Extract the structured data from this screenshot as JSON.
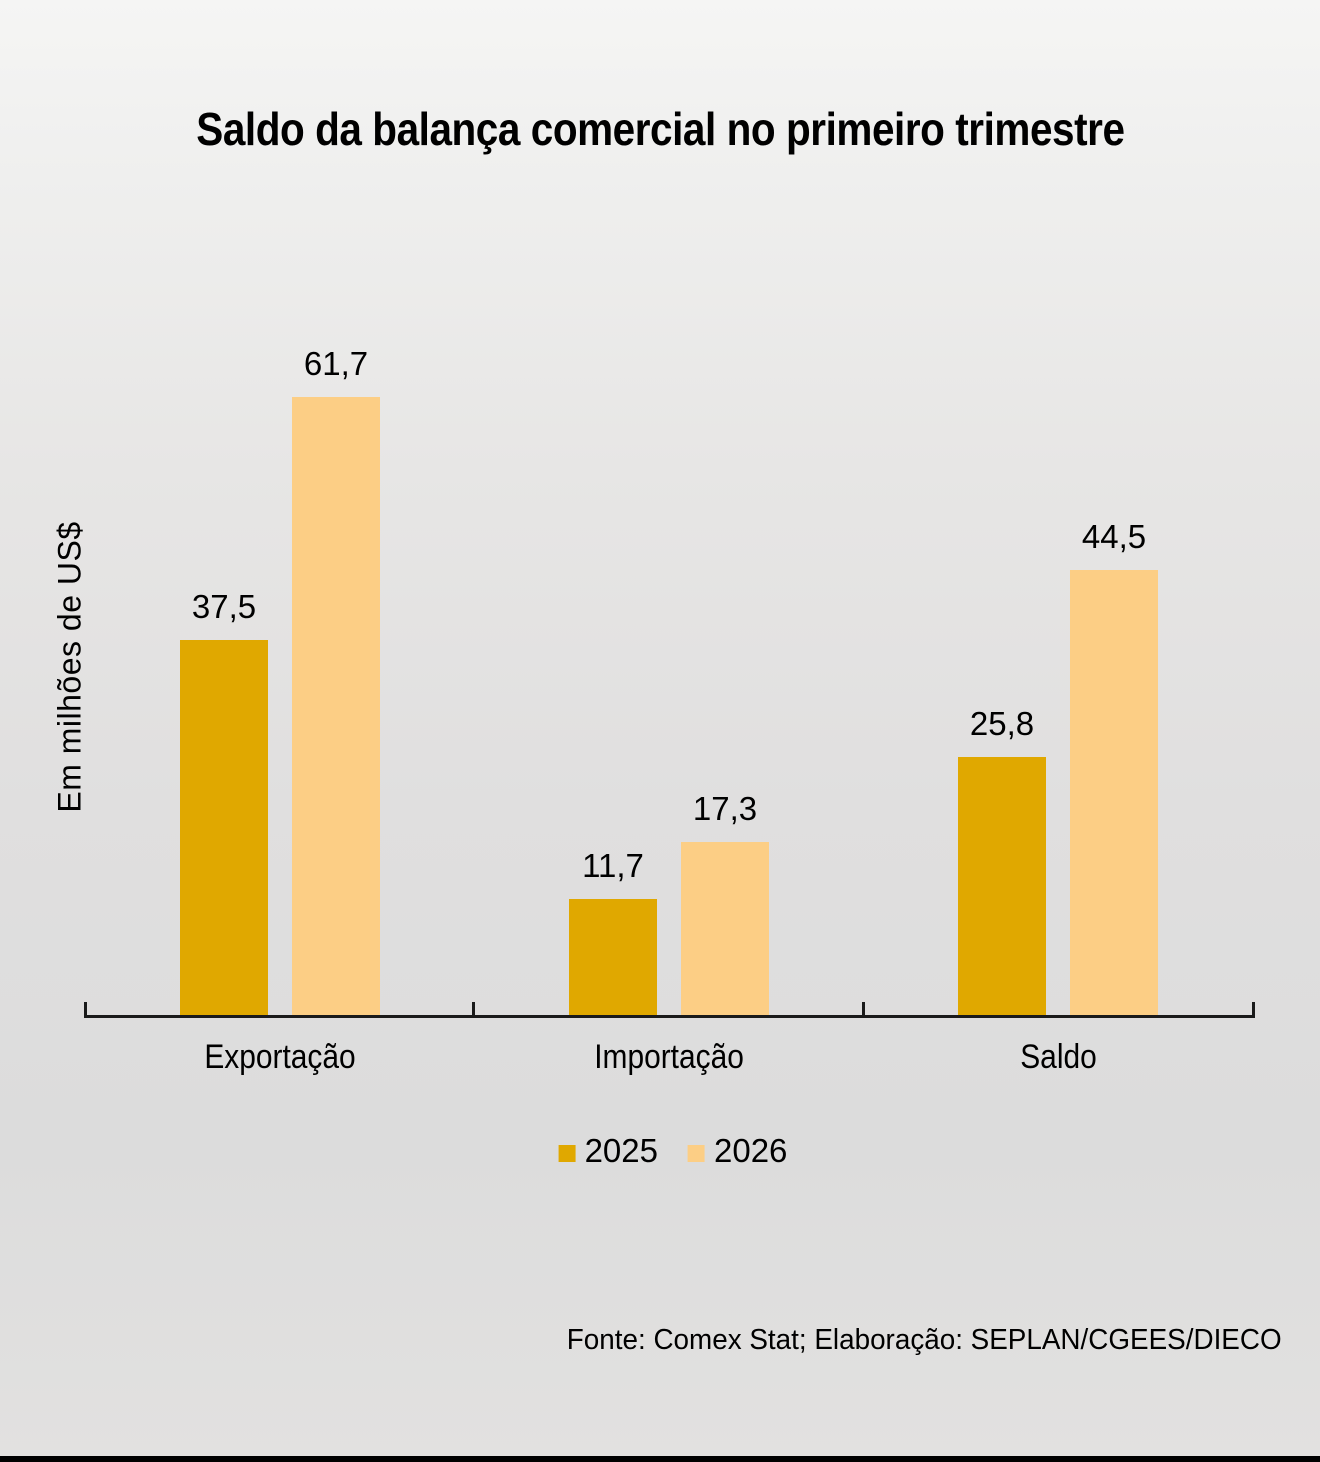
{
  "title": "Saldo da balança comercial no primeiro trimestre",
  "y_axis_label": "Em milhões de US$",
  "footer": "Fonte: Comex Stat; Elaboração: SEPLAN/CGEES/DIECO",
  "legend": {
    "items": [
      {
        "label": "2025",
        "color": "#e0a800"
      },
      {
        "label": "2026",
        "color": "#fcce85"
      }
    ]
  },
  "colors": {
    "series_2025": "#e0a800",
    "series_2026": "#fcce85",
    "axis": "#1a1a1a",
    "text": "#000000",
    "background_top": "#f5f5f4",
    "background_bottom": "#dcdcdc"
  },
  "chart_data": {
    "type": "bar",
    "title": "Saldo da balança comercial no primeiro trimestre",
    "categories": [
      "Exportação",
      "Importação",
      "Saldo"
    ],
    "series": [
      {
        "name": "2025",
        "color": "#e0a800",
        "values": [
          37.5,
          11.7,
          25.8
        ],
        "labels": [
          "37,5",
          "11,7",
          "25,8"
        ]
      },
      {
        "name": "2026",
        "color": "#fcce85",
        "values": [
          61.7,
          17.3,
          44.5
        ],
        "labels": [
          "61,7",
          "17,3",
          "44,5"
        ]
      }
    ],
    "xlabel": "",
    "ylabel": "Em milhões de US$",
    "ylim": [
      0,
      65
    ],
    "grid": false,
    "y_axis_ticks_visible": false,
    "value_format": "decimal-comma",
    "data_labels": "above-bars",
    "legend_position": "bottom"
  }
}
